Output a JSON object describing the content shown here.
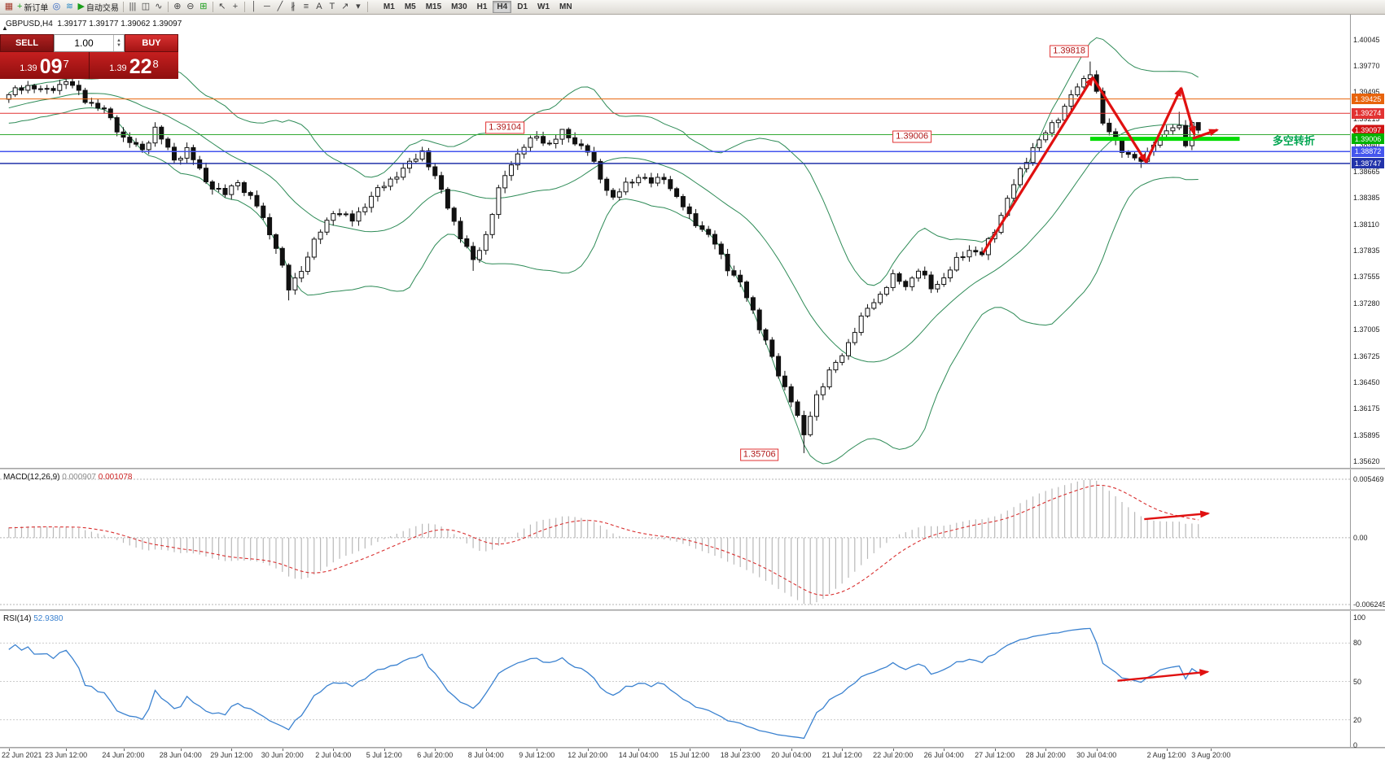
{
  "toolbar": {
    "items": [
      {
        "kind": "icon",
        "name": "chart-window-icon",
        "glyph": "▦",
        "color": "#a33b2b"
      },
      {
        "kind": "button",
        "name": "new-order-button",
        "glyph": "+",
        "color": "#1a9e1a",
        "label": "新订单"
      },
      {
        "kind": "icon",
        "name": "navigator-icon",
        "glyph": "◎",
        "color": "#2b62c4"
      },
      {
        "kind": "icon",
        "name": "signals-icon",
        "glyph": "≋",
        "color": "#2b8ac4"
      },
      {
        "kind": "button",
        "name": "autotrading-button",
        "glyph": "▶",
        "color": "#1a9e1a",
        "label": "自动交易"
      },
      {
        "kind": "sep"
      },
      {
        "kind": "icon",
        "name": "bar-chart-icon",
        "glyph": "|||",
        "color": "#444444"
      },
      {
        "kind": "icon",
        "name": "candle-chart-icon",
        "glyph": "◫",
        "color": "#444444"
      },
      {
        "kind": "icon",
        "name": "line-chart-icon",
        "glyph": "∿",
        "color": "#444444"
      },
      {
        "kind": "sep"
      },
      {
        "kind": "icon",
        "name": "zoom-in-icon",
        "glyph": "⊕",
        "color": "#444444"
      },
      {
        "kind": "icon",
        "name": "zoom-out-icon",
        "glyph": "⊖",
        "color": "#444444"
      },
      {
        "kind": "icon",
        "name": "tile-windows-icon",
        "glyph": "⊞",
        "color": "#1a9e1a"
      },
      {
        "kind": "sep"
      },
      {
        "kind": "icon",
        "name": "cursor-icon",
        "glyph": "↖",
        "color": "#444444"
      },
      {
        "kind": "icon",
        "name": "crosshair-icon",
        "glyph": "+",
        "color": "#444444"
      },
      {
        "kind": "sep"
      },
      {
        "kind": "icon",
        "name": "vertical-line-icon",
        "glyph": "│",
        "color": "#444444"
      },
      {
        "kind": "icon",
        "name": "horizontal-line-icon",
        "glyph": "─",
        "color": "#444444"
      },
      {
        "kind": "icon",
        "name": "trendline-icon",
        "glyph": "╱",
        "color": "#444444"
      },
      {
        "kind": "icon",
        "name": "channel-icon",
        "glyph": "∦",
        "color": "#444444"
      },
      {
        "kind": "icon",
        "name": "fibonacci-icon",
        "glyph": "≡",
        "color": "#444444"
      },
      {
        "kind": "icon",
        "name": "text-icon",
        "glyph": "A",
        "color": "#444444"
      },
      {
        "kind": "icon",
        "name": "label-icon",
        "glyph": "T",
        "color": "#444444"
      },
      {
        "kind": "icon",
        "name": "shapes-icon",
        "glyph": "↗",
        "color": "#444444"
      },
      {
        "kind": "icon",
        "name": "shapes-dropdown-icon",
        "glyph": "▾",
        "color": "#444444"
      },
      {
        "kind": "sep"
      }
    ],
    "timeframes": {
      "items": [
        "M1",
        "M5",
        "M15",
        "M30",
        "H1",
        "H4",
        "D1",
        "W1",
        "MN"
      ],
      "active": "H4"
    }
  },
  "trade_panel": {
    "collapse_icon": "▲",
    "sell_label": "SELL",
    "buy_label": "BUY",
    "volume": "1.00",
    "spinner_up": "▲",
    "spinner_down": "▼",
    "sell_price_prefix": "1.39",
    "sell_price_big": "09",
    "sell_price_sup": "7",
    "buy_price_prefix": "1.39",
    "buy_price_big": "22",
    "buy_price_sup": "8"
  },
  "chart": {
    "symbol_line": "GBPUSD,H4  1.39177 1.39177 1.39062 1.39097"
  },
  "indicators": {
    "macd": {
      "name": "MACD(12,26,9)",
      "main_value": "0.000907",
      "signal_value": "0.001078",
      "scale": {
        "top": "0.005469",
        "zero": "0.00",
        "bottom": "-0.006245"
      }
    },
    "rsi": {
      "name": "RSI(14)",
      "value": "52.9380",
      "scale": [
        "100",
        "80",
        "50",
        "20",
        "0"
      ]
    }
  },
  "colors": {
    "band": "#2e8b57",
    "bull": "#ffffff",
    "bear": "#111111",
    "candle_stroke": "#111111",
    "macd_hist": "#b9b9b9",
    "macd_signal": "#d93030",
    "rsi_line": "#3b82d0",
    "arrow": "#e01010",
    "grid_dot": "#b5b5b5"
  },
  "chart_data": {
    "type": "candlestick",
    "symbol": "GBPUSD",
    "timeframe": "H4",
    "price_scale_ticks": [
      "1.40045",
      "1.39770",
      "1.39495",
      "1.39215",
      "1.38940",
      "1.38665",
      "1.38385",
      "1.38110",
      "1.37835",
      "1.37555",
      "1.37280",
      "1.37005",
      "1.36725",
      "1.36450",
      "1.36175",
      "1.35895",
      "1.35620"
    ],
    "price_tags": [
      {
        "text": "1.39425",
        "price": 1.39425,
        "color": "#e8640c"
      },
      {
        "text": "1.39274",
        "price": 1.39274,
        "color": "#e23333"
      },
      {
        "text": "1.39097",
        "price": 1.39097,
        "color": "#d01212",
        "current": true
      },
      {
        "text": "1.39006",
        "price": 1.39006,
        "color": "#00b300"
      },
      {
        "text": "1.38872",
        "price": 1.38872,
        "color": "#4455ee"
      },
      {
        "text": "1.38747",
        "price": 1.38747,
        "color": "#2233aa"
      }
    ],
    "hlines": [
      {
        "price": 1.39425,
        "color": "#e8640c",
        "width": 1
      },
      {
        "price": 1.39274,
        "color": "#e23333",
        "width": 1
      },
      {
        "price": 1.3905,
        "color": "#33aa33",
        "width": 1
      },
      {
        "price": 1.38872,
        "color": "#4455ee",
        "width": 1.5
      },
      {
        "price": 1.38747,
        "color": "#2233aa",
        "width": 1.5
      }
    ],
    "green_segment": {
      "price": 1.39006,
      "i1": 170,
      "i2": 193.5,
      "color": "#00dd00",
      "width": 5
    },
    "price_labels": [
      {
        "text": "1.39818",
        "i": 166.7,
        "price": 1.39925
      },
      {
        "text": "1.39104",
        "i": 78,
        "price": 1.39122
      },
      {
        "text": "1.39006",
        "i": 142,
        "price": 1.39028
      },
      {
        "text": "1.35706",
        "i": 118,
        "price": 1.35688
      }
    ],
    "note_text": {
      "text": "多空转折",
      "i": 202,
      "price": 1.38994,
      "color": "#00a550"
    },
    "trend_arrows": [
      [
        [
          153.2,
          1.3781
        ],
        [
          170.4,
          1.3965
        ]
      ],
      [
        [
          170.4,
          1.3965
        ],
        [
          178.8,
          1.3876
        ]
      ],
      [
        [
          178.8,
          1.3876
        ],
        [
          184.3,
          1.3954
        ]
      ],
      [
        [
          184.3,
          1.3954
        ],
        [
          186.4,
          1.3905
        ]
      ],
      [
        [
          186.1,
          1.3901
        ],
        [
          190.0,
          1.391
        ]
      ]
    ],
    "macd_arrow": [
      [
        178.5,
        0.355
      ],
      [
        188.6,
        0.314
      ]
    ],
    "rsi_arrow": [
      [
        174.3,
        50.5
      ],
      [
        188.5,
        57.5
      ]
    ],
    "bollinger": {
      "period": 20,
      "deviation": 2
    },
    "macd_params": {
      "fast": 12,
      "slow": 26,
      "signal": 9
    },
    "rsi_params": {
      "period": 14
    },
    "pre_anchors": [
      [
        -40,
        1.3892
      ],
      [
        -32,
        1.3915
      ],
      [
        -24,
        1.3898
      ],
      [
        -16,
        1.3926
      ],
      [
        -8,
        1.3935
      ],
      [
        -1,
        1.3944
      ]
    ],
    "price_anchors": [
      [
        0,
        1.3947
      ],
      [
        3,
        1.3957
      ],
      [
        6,
        1.395
      ],
      [
        9,
        1.3962
      ],
      [
        12,
        1.3942
      ],
      [
        15,
        1.393
      ],
      [
        18,
        1.3902
      ],
      [
        21,
        1.3888
      ],
      [
        23,
        1.3912
      ],
      [
        26,
        1.3878
      ],
      [
        28,
        1.389
      ],
      [
        31,
        1.3856
      ],
      [
        34,
        1.3842
      ],
      [
        36,
        1.3856
      ],
      [
        39,
        1.383
      ],
      [
        42,
        1.3788
      ],
      [
        44,
        1.3742
      ],
      [
        46,
        1.3764
      ],
      [
        48,
        1.3792
      ],
      [
        51,
        1.3825
      ],
      [
        54,
        1.3815
      ],
      [
        57,
        1.384
      ],
      [
        60,
        1.3858
      ],
      [
        63,
        1.3874
      ],
      [
        65,
        1.3888
      ],
      [
        67,
        1.386
      ],
      [
        69,
        1.383
      ],
      [
        71,
        1.3798
      ],
      [
        73,
        1.3772
      ],
      [
        75,
        1.38
      ],
      [
        77,
        1.3846
      ],
      [
        79,
        1.3876
      ],
      [
        81,
        1.3893
      ],
      [
        83,
        1.3903
      ],
      [
        85,
        1.3895
      ],
      [
        87,
        1.3907
      ],
      [
        89,
        1.3898
      ],
      [
        91,
        1.3887
      ],
      [
        93,
        1.386
      ],
      [
        95,
        1.3838
      ],
      [
        97,
        1.3852
      ],
      [
        99,
        1.3862
      ],
      [
        101,
        1.3854
      ],
      [
        103,
        1.3861
      ],
      [
        105,
        1.3838
      ],
      [
        107,
        1.382
      ],
      [
        109,
        1.3806
      ],
      [
        111,
        1.379
      ],
      [
        113,
        1.3766
      ],
      [
        115,
        1.3748
      ],
      [
        117,
        1.372
      ],
      [
        119,
        1.3688
      ],
      [
        121,
        1.3652
      ],
      [
        123,
        1.3628
      ],
      [
        125,
        1.3588
      ],
      [
        127,
        1.3632
      ],
      [
        129,
        1.3655
      ],
      [
        131,
        1.3674
      ],
      [
        133,
        1.37
      ],
      [
        135,
        1.3722
      ],
      [
        137,
        1.3738
      ],
      [
        139,
        1.3755
      ],
      [
        141,
        1.3747
      ],
      [
        143,
        1.3763
      ],
      [
        145,
        1.3744
      ],
      [
        147,
        1.3755
      ],
      [
        149,
        1.3772
      ],
      [
        151,
        1.3785
      ],
      [
        153,
        1.3779
      ],
      [
        155,
        1.3805
      ],
      [
        157,
        1.3838
      ],
      [
        159,
        1.3866
      ],
      [
        161,
        1.3892
      ],
      [
        163,
        1.3906
      ],
      [
        165,
        1.3924
      ],
      [
        167,
        1.3946
      ],
      [
        169,
        1.3962
      ],
      [
        170,
        1.3972
      ],
      [
        171,
        1.395
      ],
      [
        172,
        1.3916
      ],
      [
        174,
        1.3898
      ],
      [
        176,
        1.3883
      ],
      [
        178,
        1.3876
      ],
      [
        180,
        1.3898
      ],
      [
        182,
        1.3908
      ],
      [
        184,
        1.3915
      ],
      [
        185,
        1.3897
      ],
      [
        186,
        1.39177
      ],
      [
        187,
        1.39097
      ]
    ],
    "close_overrides": {
      "186": 1.39177,
      "187": 1.39097
    },
    "wick_overrides": [
      {
        "i": 9,
        "high": 1.39703
      },
      {
        "i": 44,
        "low": 1.3731
      },
      {
        "i": 73,
        "low": 1.3762
      },
      {
        "i": 87,
        "high": 1.39104
      },
      {
        "i": 125,
        "low": 1.35706
      },
      {
        "i": 170,
        "high": 1.39818
      },
      {
        "i": 178,
        "low": 1.387
      },
      {
        "i": 184,
        "high": 1.3929
      },
      {
        "i": 187,
        "high": 1.39177,
        "low": 1.39062
      }
    ],
    "time_labels": [
      [
        "22 Jun 2021",
        0
      ],
      [
        "23 Jun 12:00",
        9
      ],
      [
        "24 Jun 20:00",
        18
      ],
      [
        "28 Jun 04:00",
        27
      ],
      [
        "29 Jun 12:00",
        35
      ],
      [
        "30 Jun 20:00",
        43
      ],
      [
        "2 Jul 04:00",
        51
      ],
      [
        "5 Jul 12:00",
        59
      ],
      [
        "6 Jul 20:00",
        67
      ],
      [
        "8 Jul 04:00",
        75
      ],
      [
        "9 Jul 12:00",
        83
      ],
      [
        "12 Jul 20:00",
        91
      ],
      [
        "14 Jul 04:00",
        99
      ],
      [
        "15 Jul 12:00",
        107
      ],
      [
        "18 Jul 23:00",
        115
      ],
      [
        "20 Jul 04:00",
        123
      ],
      [
        "21 Jul 12:00",
        131
      ],
      [
        "22 Jul 20:00",
        139
      ],
      [
        "26 Jul 04:00",
        147
      ],
      [
        "27 Jul 12:00",
        155
      ],
      [
        "28 Jul 20:00",
        163
      ],
      [
        "30 Jul 04:00",
        171
      ],
      [
        "2 Aug 12:00",
        182
      ],
      [
        "3 Aug 20:00",
        189
      ]
    ]
  }
}
